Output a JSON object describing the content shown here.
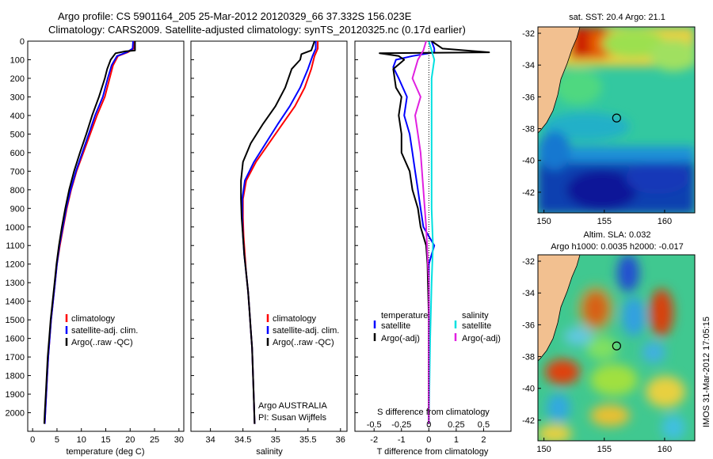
{
  "title_line1": "Argo profile: CS 5901164_205 25-Mar-2012 20120329_66 37.332S 156.023E",
  "title_line2": "Climatology: CARS2009. Satellite-adjusted climatology: synTS_20120325.nc (0.17d earlier)",
  "side_label": "IMOS 31-Mar-2012 17:05:15",
  "colors": {
    "clim": "#ff0000",
    "sat": "#0000ff",
    "argo": "#000000",
    "sal_sat": "#00e0e0",
    "sal_argo": "#e020e0"
  },
  "chart_data": [
    {
      "type": "line",
      "panel": "temperature",
      "xlabel": "temperature (deg C)",
      "xlim": [
        -1,
        31
      ],
      "xticks": [
        0,
        5,
        10,
        15,
        20,
        25,
        30
      ],
      "ylim": [
        2100,
        0
      ],
      "yticks": [
        0,
        100,
        200,
        300,
        400,
        500,
        600,
        700,
        800,
        900,
        1000,
        1100,
        1200,
        1300,
        1400,
        1500,
        1600,
        1700,
        1800,
        1900,
        2000
      ],
      "legend": [
        "climatology",
        "satellite-adj. clim.",
        "Argo(..raw -QC)"
      ],
      "series": [
        {
          "name": "climatology",
          "color": "clim",
          "points": [
            [
              20.8,
              0
            ],
            [
              20.7,
              40
            ],
            [
              19.5,
              60
            ],
            [
              17.5,
              80
            ],
            [
              16.5,
              130
            ],
            [
              15.8,
              200
            ],
            [
              14.8,
              300
            ],
            [
              13.2,
              400
            ],
            [
              11.8,
              500
            ],
            [
              10.4,
              600
            ],
            [
              9.0,
              700
            ],
            [
              7.9,
              800
            ],
            [
              7.0,
              900
            ],
            [
              6.3,
              1000
            ],
            [
              5.6,
              1100
            ],
            [
              5.0,
              1200
            ],
            [
              4.6,
              1300
            ],
            [
              4.2,
              1400
            ],
            [
              3.8,
              1500
            ],
            [
              3.5,
              1600
            ],
            [
              3.2,
              1700
            ],
            [
              3.0,
              1800
            ],
            [
              2.8,
              1900
            ],
            [
              2.6,
              2000
            ],
            [
              2.5,
              2060
            ]
          ]
        },
        {
          "name": "satellite-adj. clim.",
          "color": "sat",
          "points": [
            [
              20.6,
              0
            ],
            [
              20.5,
              40
            ],
            [
              19.3,
              60
            ],
            [
              17.3,
              80
            ],
            [
              16.2,
              130
            ],
            [
              15.4,
              200
            ],
            [
              14.4,
              300
            ],
            [
              12.8,
              400
            ],
            [
              11.5,
              500
            ],
            [
              10.2,
              600
            ],
            [
              8.9,
              700
            ],
            [
              7.8,
              800
            ],
            [
              6.9,
              900
            ],
            [
              6.2,
              1000
            ],
            [
              5.5,
              1100
            ],
            [
              5.0,
              1200
            ],
            [
              4.6,
              1300
            ],
            [
              4.2,
              1400
            ],
            [
              3.8,
              1500
            ],
            [
              3.5,
              1600
            ],
            [
              3.2,
              1700
            ],
            [
              3.0,
              1800
            ],
            [
              2.8,
              1900
            ],
            [
              2.6,
              2000
            ],
            [
              2.5,
              2060
            ]
          ]
        },
        {
          "name": "Argo(..raw -QC)",
          "color": "argo",
          "points": [
            [
              21.0,
              0
            ],
            [
              21.0,
              50
            ],
            [
              19.0,
              55
            ],
            [
              17.0,
              65
            ],
            [
              16.0,
              100
            ],
            [
              15.3,
              150
            ],
            [
              14.8,
              200
            ],
            [
              13.6,
              300
            ],
            [
              12.2,
              400
            ],
            [
              11.0,
              500
            ],
            [
              9.7,
              600
            ],
            [
              8.5,
              700
            ],
            [
              7.5,
              800
            ],
            [
              6.7,
              900
            ],
            [
              6.0,
              1000
            ],
            [
              5.4,
              1100
            ],
            [
              4.9,
              1200
            ],
            [
              4.5,
              1300
            ],
            [
              4.1,
              1400
            ],
            [
              3.7,
              1500
            ],
            [
              3.4,
              1600
            ],
            [
              3.1,
              1700
            ],
            [
              2.9,
              1800
            ],
            [
              2.7,
              1900
            ],
            [
              2.5,
              2000
            ],
            [
              2.4,
              2060
            ]
          ]
        }
      ]
    },
    {
      "type": "line",
      "panel": "salinity",
      "xlabel": "salinity",
      "xlim": [
        33.7,
        36.1
      ],
      "xticks": [
        34,
        34.5,
        35,
        35.5,
        36
      ],
      "ylim": [
        2100,
        0
      ],
      "legend": [
        "climatology",
        "satellite-adj. clim.",
        "Argo(..raw -QC)"
      ],
      "annotation": [
        "Argo AUSTRALIA",
        "PI: Susan Wijffels"
      ],
      "series": [
        {
          "name": "climatology",
          "color": "clim",
          "points": [
            [
              35.65,
              0
            ],
            [
              35.65,
              40
            ],
            [
              35.6,
              80
            ],
            [
              35.55,
              150
            ],
            [
              35.45,
              250
            ],
            [
              35.3,
              350
            ],
            [
              35.1,
              450
            ],
            [
              34.9,
              550
            ],
            [
              34.7,
              650
            ],
            [
              34.55,
              750
            ],
            [
              34.5,
              850
            ],
            [
              34.5,
              950
            ],
            [
              34.51,
              1050
            ],
            [
              34.53,
              1150
            ],
            [
              34.55,
              1250
            ],
            [
              34.58,
              1350
            ],
            [
              34.6,
              1450
            ],
            [
              34.62,
              1550
            ],
            [
              34.64,
              1650
            ],
            [
              34.65,
              1750
            ],
            [
              34.66,
              1850
            ],
            [
              34.67,
              1950
            ],
            [
              34.68,
              2060
            ]
          ]
        },
        {
          "name": "satellite-adj. clim.",
          "color": "sat",
          "points": [
            [
              35.62,
              0
            ],
            [
              35.62,
              40
            ],
            [
              35.57,
              80
            ],
            [
              35.5,
              150
            ],
            [
              35.38,
              250
            ],
            [
              35.22,
              350
            ],
            [
              35.03,
              450
            ],
            [
              34.85,
              550
            ],
            [
              34.67,
              650
            ],
            [
              34.53,
              750
            ],
            [
              34.49,
              850
            ],
            [
              34.49,
              950
            ],
            [
              34.5,
              1050
            ],
            [
              34.52,
              1150
            ],
            [
              34.55,
              1250
            ],
            [
              34.58,
              1350
            ],
            [
              34.6,
              1450
            ],
            [
              34.62,
              1550
            ],
            [
              34.64,
              1650
            ],
            [
              34.65,
              1750
            ],
            [
              34.66,
              1850
            ],
            [
              34.67,
              1950
            ],
            [
              34.68,
              2060
            ]
          ]
        },
        {
          "name": "Argo(..raw -QC)",
          "color": "argo",
          "points": [
            [
              35.6,
              0
            ],
            [
              35.55,
              50
            ],
            [
              35.4,
              70
            ],
            [
              35.38,
              100
            ],
            [
              35.25,
              150
            ],
            [
              35.15,
              250
            ],
            [
              35.0,
              350
            ],
            [
              34.8,
              450
            ],
            [
              34.62,
              550
            ],
            [
              34.5,
              650
            ],
            [
              34.47,
              750
            ],
            [
              34.47,
              850
            ],
            [
              34.48,
              950
            ],
            [
              34.5,
              1050
            ],
            [
              34.52,
              1150
            ],
            [
              34.55,
              1250
            ],
            [
              34.58,
              1350
            ],
            [
              34.6,
              1450
            ],
            [
              34.62,
              1550
            ],
            [
              34.64,
              1650
            ],
            [
              34.65,
              1750
            ],
            [
              34.66,
              1850
            ],
            [
              34.67,
              1950
            ],
            [
              34.68,
              2060
            ]
          ]
        }
      ]
    },
    {
      "type": "line",
      "panel": "difference",
      "xlabel": "T difference from climatology",
      "top_xlabel": "S difference from climatology",
      "xlim": [
        -2.7,
        3.0
      ],
      "xticks": [
        -2,
        -1,
        0,
        1,
        2
      ],
      "top_xticks": [
        "-0.5",
        "-0.25",
        "0",
        "0.25",
        "0.5"
      ],
      "top_xtick_pos": [
        -2,
        -1,
        0,
        1,
        2
      ],
      "legend_titles": [
        "temperature",
        "salinity"
      ],
      "legend_left": [
        "satellite",
        "Argo(-adj)"
      ],
      "legend_right": [
        "satellite",
        "Argo(-adj)"
      ],
      "series": [
        {
          "name": "temperature satellite",
          "color": "sat",
          "points": [
            [
              0.1,
              0
            ],
            [
              0.2,
              40
            ],
            [
              0.2,
              60
            ],
            [
              -0.6,
              80
            ],
            [
              -1.2,
              100
            ],
            [
              -1.3,
              140
            ],
            [
              -1.1,
              200
            ],
            [
              -0.8,
              300
            ],
            [
              -0.9,
              400
            ],
            [
              -0.7,
              500
            ],
            [
              -0.6,
              600
            ],
            [
              -0.5,
              700
            ],
            [
              -0.4,
              800
            ],
            [
              -0.3,
              900
            ],
            [
              -0.2,
              1000
            ],
            [
              0.2,
              1100
            ],
            [
              0.0,
              1200
            ],
            [
              0.0,
              1400
            ],
            [
              0.0,
              2060
            ]
          ]
        },
        {
          "name": "temperature Argo(-adj)",
          "color": "argo",
          "points": [
            [
              0.1,
              0
            ],
            [
              0.5,
              40
            ],
            [
              2.2,
              60
            ],
            [
              -1.8,
              65
            ],
            [
              -1.1,
              80
            ],
            [
              -0.9,
              100
            ],
            [
              -1.3,
              150
            ],
            [
              -1.2,
              250
            ],
            [
              -1.0,
              300
            ],
            [
              -1.1,
              400
            ],
            [
              -1.0,
              500
            ],
            [
              -1.0,
              600
            ],
            [
              -0.7,
              700
            ],
            [
              -0.6,
              800
            ],
            [
              -0.4,
              900
            ],
            [
              -0.3,
              1000
            ],
            [
              -0.1,
              1100
            ],
            [
              -0.05,
              1200
            ],
            [
              0.0,
              1500
            ],
            [
              0.0,
              1800
            ],
            [
              0.0,
              2060
            ]
          ]
        },
        {
          "name": "salinity satellite",
          "color": "sal_sat",
          "points": [
            [
              0.0,
              0
            ],
            [
              0.1,
              50
            ],
            [
              0.2,
              100
            ],
            [
              0.1,
              200
            ],
            [
              0.1,
              300
            ],
            [
              0.1,
              400
            ],
            [
              0.1,
              600
            ],
            [
              0.1,
              900
            ],
            [
              0.15,
              1100
            ],
            [
              0.1,
              1300
            ],
            [
              0.05,
              1600
            ],
            [
              0.0,
              2060
            ]
          ]
        },
        {
          "name": "salinity Argo(-adj)",
          "color": "sal_argo",
          "points": [
            [
              -0.1,
              0
            ],
            [
              -0.2,
              50
            ],
            [
              -0.4,
              100
            ],
            [
              -0.6,
              200
            ],
            [
              -0.3,
              300
            ],
            [
              -0.5,
              400
            ],
            [
              -0.4,
              500
            ],
            [
              -0.3,
              600
            ],
            [
              -0.2,
              800
            ],
            [
              -0.1,
              1000
            ],
            [
              0.0,
              1300
            ],
            [
              0.0,
              2060
            ]
          ]
        }
      ]
    },
    {
      "type": "heatmap",
      "panel": "map-sst",
      "title": "sat. SST: 20.4  Argo: 21.1",
      "xticks": [
        150,
        155,
        160
      ],
      "yticks": [
        -32,
        -34,
        -36,
        -38,
        -40,
        -42
      ],
      "xlim": [
        149.5,
        162.5
      ],
      "ylim": [
        -43.3,
        -31.6
      ],
      "argo_position": [
        156.023,
        -37.332
      ]
    },
    {
      "type": "heatmap",
      "panel": "map-sla",
      "title": "Altim. SLA: 0.032",
      "subtitle": "Argo h1000: 0.0035 h2000: -0.017",
      "xticks": [
        150,
        155,
        160
      ],
      "yticks": [
        -32,
        -34,
        -36,
        -38,
        -40,
        -42
      ],
      "xlim": [
        149.5,
        162.5
      ],
      "ylim": [
        -43.3,
        -31.6
      ],
      "argo_position": [
        156.023,
        -37.332
      ]
    }
  ]
}
